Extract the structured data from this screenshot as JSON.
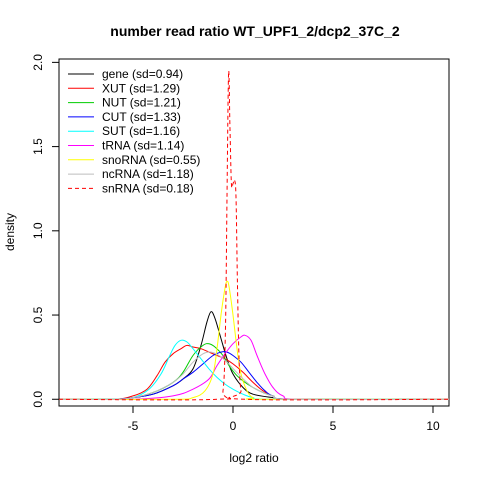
{
  "chart_data": {
    "type": "line",
    "title": "number read ratio WT_UPF1_2/dcp2_37C_2",
    "xlabel": "log2 ratio",
    "ylabel": "density",
    "xlim": [
      -8.7,
      10.8
    ],
    "ylim": [
      -0.04,
      2.02
    ],
    "x_ticks": [
      "-5",
      "0",
      "5",
      "10"
    ],
    "x_tick_values": [
      -5,
      0,
      5,
      10
    ],
    "y_ticks": [
      "0.0",
      "0.5",
      "1.0",
      "1.5",
      "2.0"
    ],
    "y_tick_values": [
      0,
      0.5,
      1.0,
      1.5,
      2.0
    ],
    "grid": false,
    "legend_position": "top-left",
    "series": [
      {
        "name": "gene (sd=0.94)",
        "color": "#000000",
        "dash": "solid",
        "points": [
          [
            -8.7,
            0
          ],
          [
            -6,
            0
          ],
          [
            -5,
            0.01
          ],
          [
            -4,
            0.03
          ],
          [
            -3,
            0.08
          ],
          [
            -2.5,
            0.12
          ],
          [
            -2,
            0.18
          ],
          [
            -1.6,
            0.32
          ],
          [
            -1.3,
            0.46
          ],
          [
            -1.1,
            0.52
          ],
          [
            -0.9,
            0.48
          ],
          [
            -0.6,
            0.36
          ],
          [
            -0.3,
            0.24
          ],
          [
            0,
            0.15
          ],
          [
            0.5,
            0.07
          ],
          [
            1,
            0.03
          ],
          [
            2,
            0.01
          ],
          [
            3,
            0
          ],
          [
            10.8,
            0
          ]
        ]
      },
      {
        "name": "XUT (sd=1.29)",
        "color": "#ff0000",
        "dash": "solid",
        "points": [
          [
            -8.7,
            0
          ],
          [
            -6,
            0
          ],
          [
            -5,
            0.02
          ],
          [
            -4.3,
            0.06
          ],
          [
            -3.8,
            0.14
          ],
          [
            -3.4,
            0.22
          ],
          [
            -3,
            0.27
          ],
          [
            -2.6,
            0.3
          ],
          [
            -2.3,
            0.32
          ],
          [
            -2,
            0.31
          ],
          [
            -1.6,
            0.3
          ],
          [
            -1.2,
            0.28
          ],
          [
            -0.8,
            0.26
          ],
          [
            -0.4,
            0.24
          ],
          [
            0,
            0.21
          ],
          [
            0.5,
            0.16
          ],
          [
            1,
            0.1
          ],
          [
            1.5,
            0.05
          ],
          [
            2,
            0.02
          ],
          [
            3,
            0
          ],
          [
            10.8,
            0
          ]
        ]
      },
      {
        "name": "NUT (sd=1.21)",
        "color": "#00cd00",
        "dash": "solid",
        "points": [
          [
            -8.7,
            0
          ],
          [
            -6,
            0
          ],
          [
            -5,
            0.01
          ],
          [
            -4,
            0.04
          ],
          [
            -3,
            0.1
          ],
          [
            -2.5,
            0.16
          ],
          [
            -2,
            0.26
          ],
          [
            -1.5,
            0.32
          ],
          [
            -1.2,
            0.33
          ],
          [
            -0.9,
            0.31
          ],
          [
            -0.5,
            0.26
          ],
          [
            -0.2,
            0.2
          ],
          [
            0.2,
            0.14
          ],
          [
            0.6,
            0.1
          ],
          [
            1,
            0.07
          ],
          [
            1.5,
            0.04
          ],
          [
            2,
            0.02
          ],
          [
            3,
            0
          ],
          [
            10.8,
            0
          ]
        ]
      },
      {
        "name": "CUT (sd=1.33)",
        "color": "#0000ff",
        "dash": "solid",
        "points": [
          [
            -8.7,
            0
          ],
          [
            -6,
            0
          ],
          [
            -5,
            0.01
          ],
          [
            -4,
            0.03
          ],
          [
            -3,
            0.08
          ],
          [
            -2.5,
            0.12
          ],
          [
            -2,
            0.16
          ],
          [
            -1.5,
            0.21
          ],
          [
            -1,
            0.26
          ],
          [
            -0.6,
            0.28
          ],
          [
            -0.3,
            0.28
          ],
          [
            0,
            0.26
          ],
          [
            0.4,
            0.22
          ],
          [
            0.8,
            0.16
          ],
          [
            1.2,
            0.1
          ],
          [
            1.6,
            0.05
          ],
          [
            2,
            0.02
          ],
          [
            3,
            0
          ],
          [
            10.8,
            0
          ]
        ]
      },
      {
        "name": "SUT (sd=1.16)",
        "color": "#00ffff",
        "dash": "solid",
        "points": [
          [
            -8.7,
            0
          ],
          [
            -6,
            0
          ],
          [
            -5,
            0.01
          ],
          [
            -4.2,
            0.06
          ],
          [
            -3.6,
            0.15
          ],
          [
            -3.2,
            0.25
          ],
          [
            -2.9,
            0.32
          ],
          [
            -2.6,
            0.35
          ],
          [
            -2.3,
            0.34
          ],
          [
            -2,
            0.3
          ],
          [
            -1.6,
            0.24
          ],
          [
            -1.2,
            0.18
          ],
          [
            -0.8,
            0.13
          ],
          [
            -0.4,
            0.09
          ],
          [
            0,
            0.06
          ],
          [
            0.5,
            0.03
          ],
          [
            1,
            0.01
          ],
          [
            2,
            0
          ],
          [
            10.8,
            0
          ]
        ]
      },
      {
        "name": "tRNA (sd=1.14)",
        "color": "#ff00ff",
        "dash": "solid",
        "points": [
          [
            -8.7,
            0
          ],
          [
            -5,
            0
          ],
          [
            -3,
            0.02
          ],
          [
            -2,
            0.06
          ],
          [
            -1.2,
            0.12
          ],
          [
            -0.8,
            0.2
          ],
          [
            -0.4,
            0.27
          ],
          [
            0,
            0.33
          ],
          [
            0.4,
            0.37
          ],
          [
            0.6,
            0.38
          ],
          [
            0.9,
            0.35
          ],
          [
            1.2,
            0.26
          ],
          [
            1.6,
            0.15
          ],
          [
            2,
            0.07
          ],
          [
            2.5,
            0.02
          ],
          [
            3.5,
            0
          ],
          [
            10.8,
            0
          ]
        ]
      },
      {
        "name": "snoRNA (sd=0.55)",
        "color": "#ffff00",
        "dash": "solid",
        "points": [
          [
            -8.7,
            0
          ],
          [
            -3,
            0
          ],
          [
            -2,
            0.01
          ],
          [
            -1.4,
            0.05
          ],
          [
            -1,
            0.15
          ],
          [
            -0.8,
            0.3
          ],
          [
            -0.6,
            0.5
          ],
          [
            -0.4,
            0.66
          ],
          [
            -0.3,
            0.7
          ],
          [
            -0.2,
            0.67
          ],
          [
            0,
            0.5
          ],
          [
            0.2,
            0.3
          ],
          [
            0.4,
            0.15
          ],
          [
            0.7,
            0.05
          ],
          [
            1,
            0.01
          ],
          [
            1.5,
            0
          ],
          [
            10.8,
            0
          ]
        ]
      },
      {
        "name": "ncRNA (sd=1.18)",
        "color": "#bebebe",
        "dash": "solid",
        "points": [
          [
            -8.7,
            0
          ],
          [
            -6,
            0
          ],
          [
            -5,
            0.01
          ],
          [
            -4,
            0.04
          ],
          [
            -3,
            0.1
          ],
          [
            -2.5,
            0.15
          ],
          [
            -2,
            0.22
          ],
          [
            -1.5,
            0.27
          ],
          [
            -1.1,
            0.28
          ],
          [
            -0.7,
            0.26
          ],
          [
            -0.3,
            0.22
          ],
          [
            0.1,
            0.17
          ],
          [
            0.6,
            0.11
          ],
          [
            1,
            0.07
          ],
          [
            1.5,
            0.04
          ],
          [
            2,
            0.02
          ],
          [
            3,
            0
          ],
          [
            10.8,
            0
          ]
        ]
      },
      {
        "name": "snRNA (sd=0.18)",
        "color": "#ff0000",
        "dash": "dashed",
        "points": [
          [
            -8.7,
            0
          ],
          [
            -0.8,
            0
          ],
          [
            -0.5,
            0.05
          ],
          [
            -0.38,
            0.4
          ],
          [
            -0.3,
            1.2
          ],
          [
            -0.22,
            1.94
          ],
          [
            -0.15,
            1.6
          ],
          [
            -0.08,
            1.28
          ],
          [
            0,
            1.28
          ],
          [
            0.08,
            1.3
          ],
          [
            0.15,
            1.2
          ],
          [
            0.22,
            0.7
          ],
          [
            0.3,
            0.25
          ],
          [
            0.4,
            0.05
          ],
          [
            0.6,
            0
          ],
          [
            10.8,
            0
          ]
        ]
      }
    ]
  }
}
